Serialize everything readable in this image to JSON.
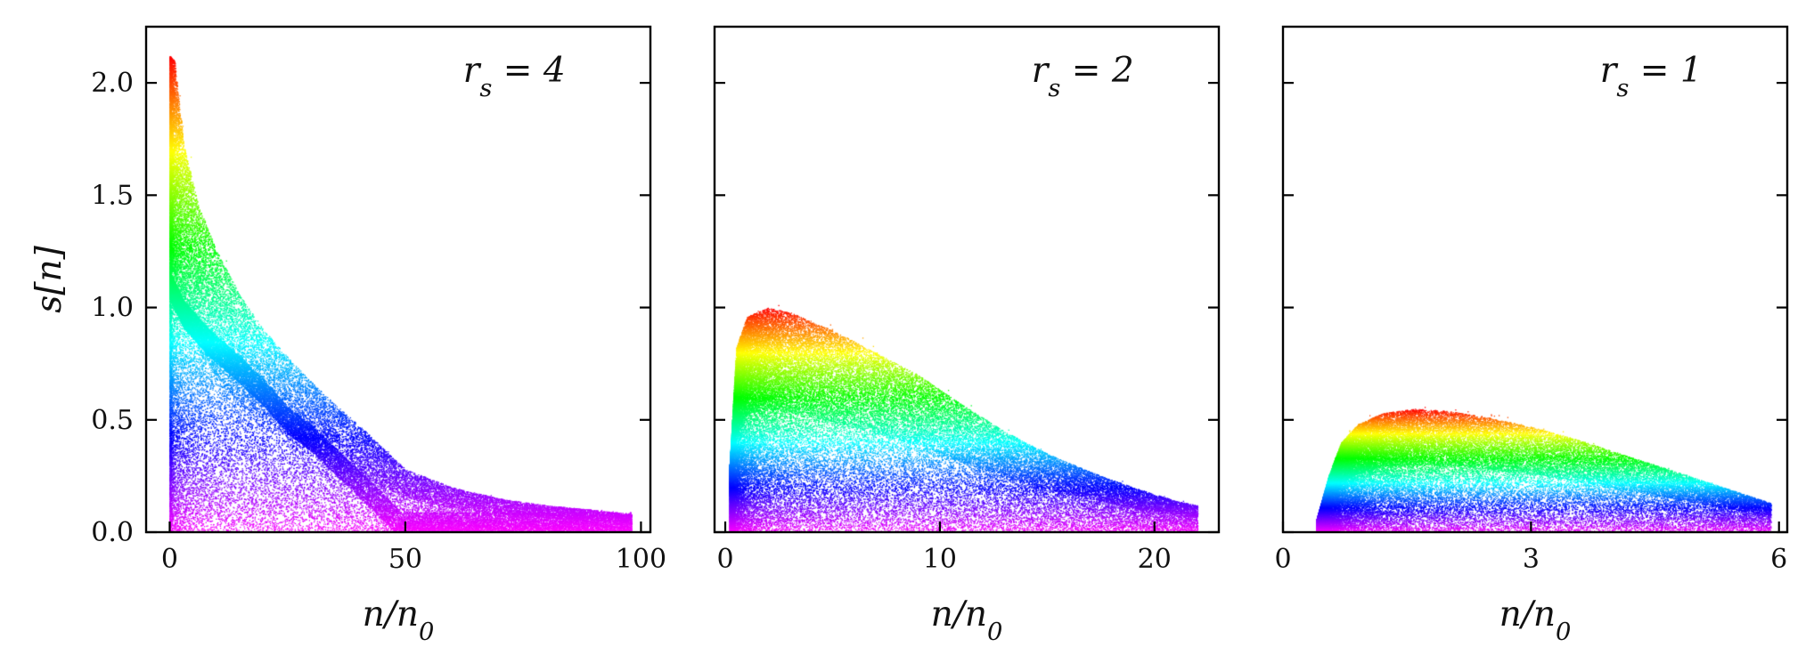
{
  "chart_data": [
    {
      "type": "scatter",
      "panel_label": "r_s = 4",
      "xlabel": "n/n_0",
      "ylabel": "s[n]",
      "xlim": [
        -5,
        102
      ],
      "ylim": [
        0,
        2.25
      ],
      "xticks": [
        0,
        50,
        100
      ],
      "xtick_labels": [
        "0",
        "50",
        "100"
      ],
      "yticks": [
        0.0,
        0.5,
        1.0,
        1.5,
        2.0
      ],
      "ytick_labels": [
        "0.0",
        "0.5",
        "1.0",
        "1.5",
        "2.0"
      ],
      "colormap": "hsv by s: red at top, magenta at bottom",
      "envelope": {
        "n": [
          0,
          1,
          3,
          6,
          10,
          15,
          20,
          25,
          30,
          35,
          40,
          45,
          50,
          60,
          70,
          80,
          90,
          98
        ],
        "s_max": [
          2.12,
          2.1,
          1.72,
          1.46,
          1.25,
          1.05,
          0.9,
          0.78,
          0.67,
          0.57,
          0.48,
          0.38,
          0.28,
          0.2,
          0.15,
          0.12,
          0.1,
          0.08
        ]
      },
      "ridge": {
        "n": [
          0,
          3,
          8,
          15,
          20,
          25,
          30,
          35,
          40,
          45,
          49
        ],
        "s": [
          1.1,
          0.97,
          0.85,
          0.72,
          0.62,
          0.5,
          0.42,
          0.32,
          0.22,
          0.12,
          0.03
        ]
      }
    },
    {
      "type": "scatter",
      "panel_label": "r_s = 2",
      "xlabel": "n/n_0",
      "ylabel": "",
      "xlim": [
        -0.5,
        23
      ],
      "ylim": [
        0,
        2.25
      ],
      "xticks": [
        0,
        10,
        20
      ],
      "xtick_labels": [
        "0",
        "10",
        "20"
      ],
      "yticks": [
        0.0,
        0.5,
        1.0,
        1.5,
        2.0
      ],
      "ytick_labels": [],
      "colormap": "hsv by s: red at top, magenta at bottom",
      "envelope": {
        "n": [
          0.2,
          0.5,
          1,
          2,
          3,
          5,
          7,
          9,
          11,
          13,
          15,
          17,
          19,
          21,
          22
        ],
        "s_max": [
          0.3,
          0.82,
          0.96,
          1.0,
          0.98,
          0.9,
          0.8,
          0.7,
          0.57,
          0.45,
          0.35,
          0.27,
          0.2,
          0.14,
          0.12
        ]
      },
      "ridge": null
    },
    {
      "type": "scatter",
      "panel_label": "r_s = 1",
      "xlabel": "n/n_0",
      "ylabel": "",
      "xlim": [
        0,
        6.1
      ],
      "ylim": [
        0,
        2.25
      ],
      "xticks": [
        0,
        3,
        6
      ],
      "xtick_labels": [
        "0",
        "3",
        "6"
      ],
      "yticks": [
        0.0,
        0.5,
        1.0,
        1.5,
        2.0
      ],
      "ytick_labels": [],
      "colormap": "hsv by s: red at top, magenta at bottom",
      "envelope": {
        "n": [
          0.4,
          0.55,
          0.7,
          0.9,
          1.2,
          1.6,
          2.0,
          2.5,
          3.0,
          3.5,
          4.0,
          4.5,
          5.0,
          5.5,
          5.9
        ],
        "s_max": [
          0.05,
          0.25,
          0.4,
          0.48,
          0.53,
          0.55,
          0.54,
          0.51,
          0.47,
          0.42,
          0.36,
          0.3,
          0.24,
          0.18,
          0.13
        ]
      },
      "ridge": null
    }
  ]
}
